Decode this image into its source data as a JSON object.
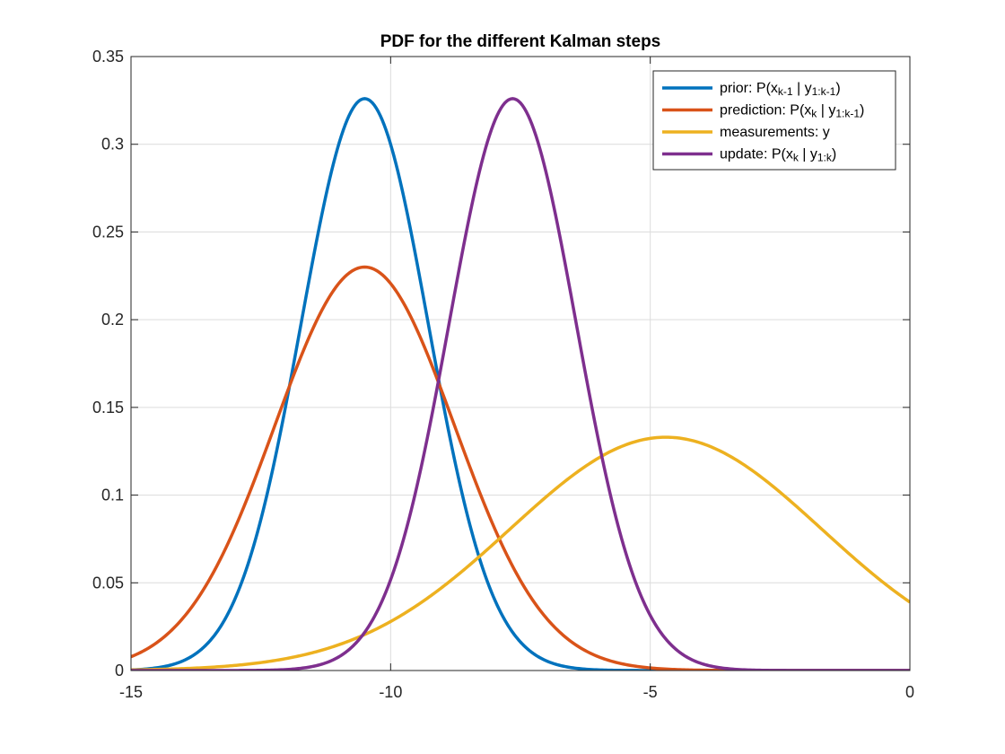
{
  "chart_data": {
    "type": "line",
    "title": "PDF for the different Kalman steps",
    "xlabel": "",
    "ylabel": "",
    "xlim": [
      -15,
      0
    ],
    "ylim": [
      0,
      0.35
    ],
    "x_ticks": [
      -15,
      -10,
      -5,
      0
    ],
    "x_tick_labels": [
      "-15",
      "-10",
      "-5",
      "0"
    ],
    "y_ticks": [
      0,
      0.05,
      0.1,
      0.15,
      0.2,
      0.25,
      0.3,
      0.35
    ],
    "y_tick_labels": [
      "0",
      "0.05",
      "0.1",
      "0.15",
      "0.2",
      "0.25",
      "0.3",
      "0.35"
    ],
    "grid": true,
    "legend_position": "top-right",
    "series": [
      {
        "name": "prior: P(x_{k-1} | y_{1:k-1})",
        "legend": {
          "pre": "prior: P(x",
          "sub1": "k-1",
          "mid": " | y",
          "sub2": "1:k-1",
          "post": ")"
        },
        "color": "#0072BD",
        "distribution": {
          "mean": -10.5,
          "std": 1.225
        },
        "peak_value": 0.326
      },
      {
        "name": "prediction: P(x_k | y_{1:k-1})",
        "legend": {
          "pre": "prediction: P(x",
          "sub1": "k",
          "mid": " | y",
          "sub2": "1:k-1",
          "post": ")"
        },
        "color": "#D95319",
        "distribution": {
          "mean": -10.5,
          "std": 1.732
        },
        "peak_value": 0.23
      },
      {
        "name": "measurements: y",
        "legend": {
          "pre": "measurements: y",
          "sub1": "",
          "mid": "",
          "sub2": "",
          "post": ""
        },
        "color": "#EDB120",
        "distribution": {
          "mean": -4.7,
          "std": 3.0
        },
        "peak_value": 0.133
      },
      {
        "name": "update: P(x_k | y_{1:k})",
        "legend": {
          "pre": "update: P(x",
          "sub1": "k",
          "mid": " | y",
          "sub2": "1:k",
          "post": ")"
        },
        "color": "#7E2F8E",
        "distribution": {
          "mean": -7.65,
          "std": 1.225
        },
        "peak_value": 0.326
      }
    ]
  }
}
